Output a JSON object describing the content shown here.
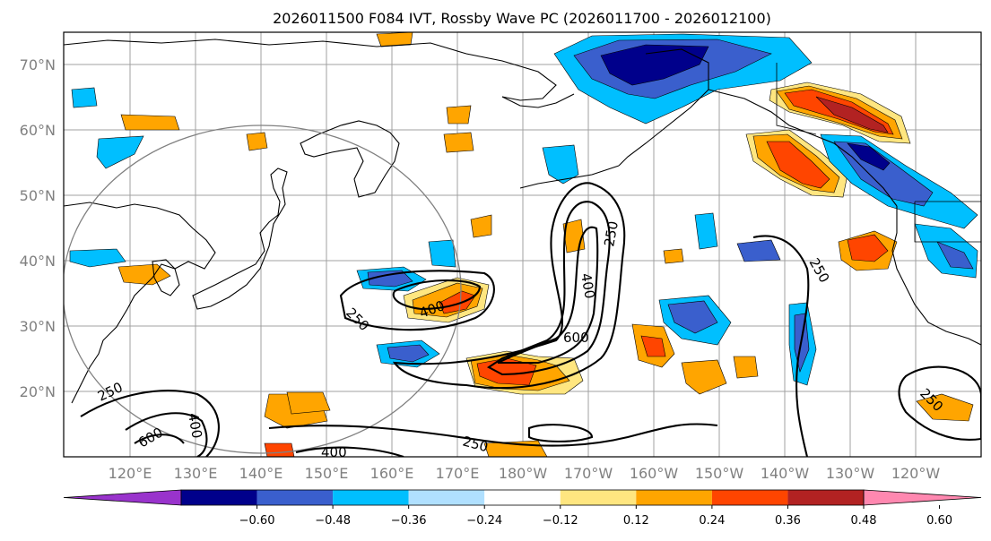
{
  "title": "2026011500 F084 IVT, Rossby Wave PC (2026011700 - 2026012100)",
  "lat_labels": [
    "70°N",
    "60°N",
    "50°N",
    "40°N",
    "30°N",
    "20°N"
  ],
  "lon_labels": [
    "120°E",
    "130°E",
    "140°E",
    "150°E",
    "160°E",
    "170°E",
    "180°W",
    "170°W",
    "160°W",
    "150°W",
    "140°W",
    "130°W",
    "120°W"
  ],
  "colorbar": {
    "ticks": [
      "−0.60",
      "−0.48",
      "−0.36",
      "−0.24",
      "−0.12",
      "0.12",
      "0.24",
      "0.36",
      "0.48",
      "0.60"
    ],
    "colors": [
      "#9933cc",
      "#00008b",
      "#3a5fcd",
      "#00bfff",
      "#b0e0ff",
      "#ffffff",
      "#ffe680",
      "#ffa500",
      "#ff4500",
      "#b22222",
      "#ff88b0"
    ]
  },
  "contour_labels": [
    "250",
    "400",
    "250",
    "400",
    "600",
    "250",
    "250",
    "400",
    "600",
    "400",
    "250",
    "250"
  ]
}
